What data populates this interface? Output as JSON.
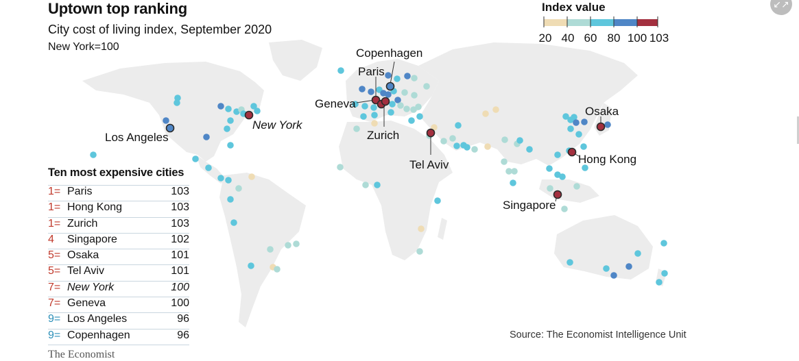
{
  "header": {
    "title": "Uptown top ranking",
    "subtitle": "City cost of living index, September 2020",
    "note": "New York=100"
  },
  "legend": {
    "title": "Index value",
    "ticks": [
      "20",
      "40",
      "60",
      "80",
      "100",
      "103"
    ],
    "colors": [
      "#efdcb4",
      "#aedbd6",
      "#5ec6dc",
      "#4f86c6",
      "#a3303f"
    ]
  },
  "table": {
    "title": "Ten most expensive cities",
    "rows": [
      {
        "rank": "1=",
        "city": "Paris",
        "value": "103"
      },
      {
        "rank": "1=",
        "city": "Hong Kong",
        "value": "103"
      },
      {
        "rank": "1=",
        "city": "Zurich",
        "value": "103"
      },
      {
        "rank": "4",
        "city": "Singapore",
        "value": "102"
      },
      {
        "rank": "5=",
        "city": "Osaka",
        "value": "101"
      },
      {
        "rank": "5=",
        "city": "Tel Aviv",
        "value": "101"
      },
      {
        "rank": "7=",
        "city": "New York",
        "value": "100"
      },
      {
        "rank": "7=",
        "city": "Geneva",
        "value": "100"
      },
      {
        "rank": "9=",
        "city": "Los Angeles",
        "value": "96"
      },
      {
        "rank": "9=",
        "city": "Copenhagen",
        "value": "96"
      }
    ]
  },
  "map_labels": {
    "copenhagen": "Copenhagen",
    "paris": "Paris",
    "geneva": "Geneva",
    "zurich": "Zurich",
    "tel_aviv": "Tel Aviv",
    "osaka": "Osaka",
    "hong_kong": "Hong Kong",
    "singapore": "Singapore",
    "new_york": "New York",
    "los_angeles": "Los Angeles"
  },
  "highlighted_cities": [
    {
      "city": "Paris",
      "index": 103
    },
    {
      "city": "Hong Kong",
      "index": 103
    },
    {
      "city": "Zurich",
      "index": 103
    },
    {
      "city": "Singapore",
      "index": 102
    },
    {
      "city": "Osaka",
      "index": 101
    },
    {
      "city": "Tel Aviv",
      "index": 101
    },
    {
      "city": "New York",
      "index": 100
    },
    {
      "city": "Geneva",
      "index": 100
    },
    {
      "city": "Los Angeles",
      "index": 96
    },
    {
      "city": "Copenhagen",
      "index": 96
    }
  ],
  "colors": {
    "land": "#ececec",
    "highlight": "#a3303f",
    "accent_red": "#c0392b",
    "accent_blue": "#2b8fb8"
  },
  "source": "Source: The Economist Intelligence Unit",
  "brand": "The Economist",
  "expand_icon": "collapse-arrows-icon"
}
